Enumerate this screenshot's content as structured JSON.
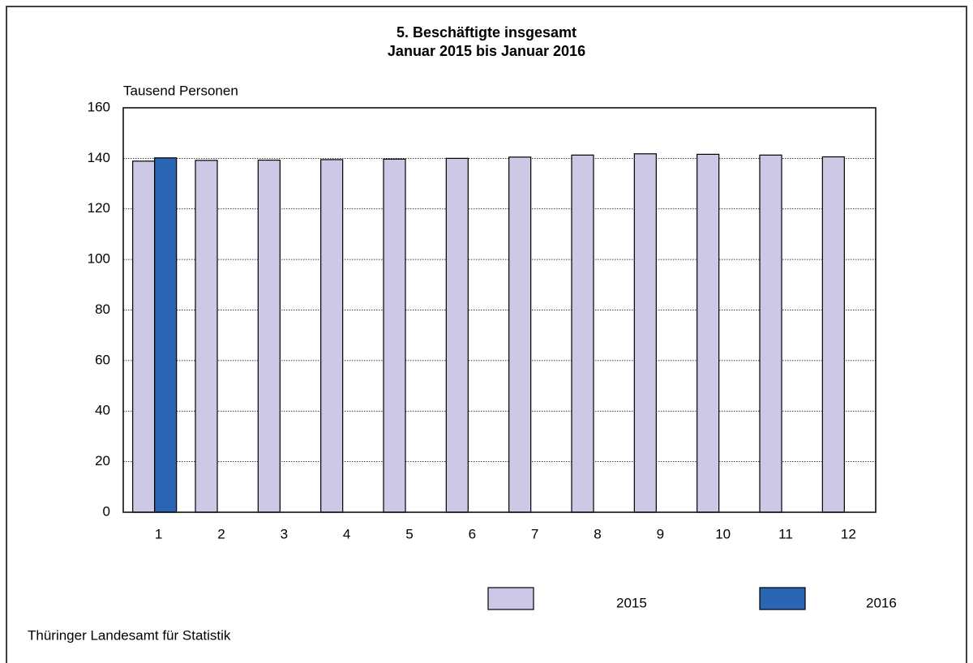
{
  "chart_data": {
    "type": "bar",
    "title": "5. Beschäftigte insgesamt",
    "subtitle": "Januar 2015 bis Januar 2016",
    "y_axis_label": "Tausend Personen",
    "source": "Thüringer Landesamt für Statistik",
    "categories": [
      "1",
      "2",
      "3",
      "4",
      "5",
      "6",
      "7",
      "8",
      "9",
      "10",
      "11",
      "12"
    ],
    "series": [
      {
        "name": "2015",
        "color": "#ccc8e6",
        "values": [
          138.9,
          139.2,
          139.3,
          139.5,
          139.7,
          140.0,
          140.5,
          141.3,
          141.8,
          141.6,
          141.3,
          140.6
        ]
      },
      {
        "name": "2016",
        "color": "#2a66b3",
        "values": [
          140.2,
          null,
          null,
          null,
          null,
          null,
          null,
          null,
          null,
          null,
          null,
          null
        ]
      }
    ],
    "ylim": [
      0,
      160
    ],
    "yticks": [
      0,
      20,
      40,
      60,
      80,
      100,
      120,
      140,
      160
    ],
    "grid": true
  }
}
